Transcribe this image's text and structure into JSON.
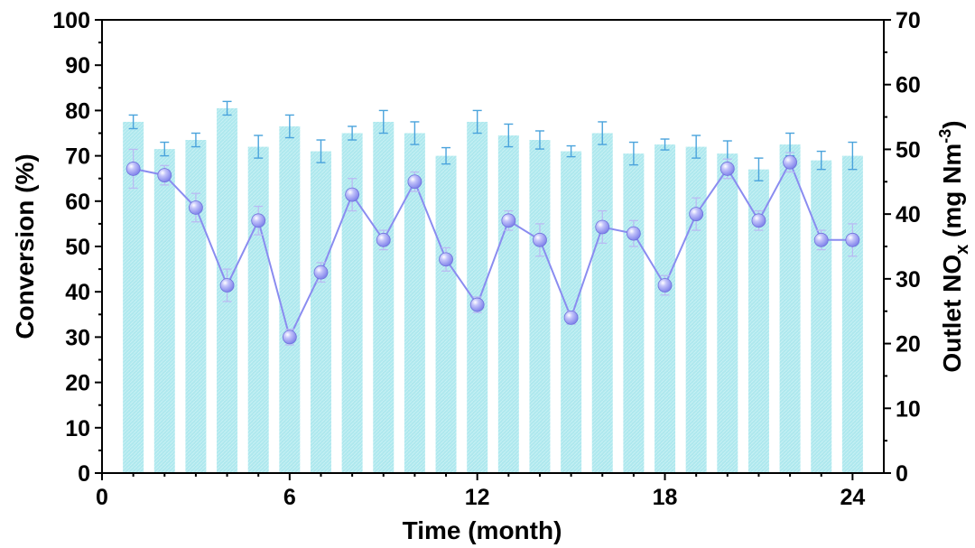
{
  "chart_data": {
    "type": "bar+line",
    "xlabel": "Time (month)",
    "xlim": [
      0,
      25
    ],
    "x_ticks": [
      0,
      6,
      12,
      18,
      24
    ],
    "x": [
      1,
      2,
      3,
      4,
      5,
      6,
      7,
      8,
      9,
      10,
      11,
      12,
      13,
      14,
      15,
      16,
      17,
      18,
      19,
      20,
      21,
      22,
      23,
      24
    ],
    "left_axis": {
      "label": "Conversion (%)",
      "ylim": [
        0,
        100
      ],
      "ticks": [
        0,
        10,
        20,
        30,
        40,
        50,
        60,
        70,
        80,
        90,
        100
      ]
    },
    "right_axis": {
      "label_main": "Outlet NO",
      "label_sub": "x",
      "label_unit": " (mg Nm",
      "label_sup": "-3",
      "label_close": ")",
      "ylim": [
        0,
        70
      ],
      "ticks": [
        0,
        10,
        20,
        30,
        40,
        50,
        60,
        70
      ]
    },
    "series": [
      {
        "name": "Conversion",
        "type": "bar",
        "axis": "left",
        "color": "#aee8ee",
        "error_color": "#4aa3dc",
        "values": [
          77.5,
          71.5,
          73.5,
          80.5,
          72.0,
          76.5,
          71.0,
          75.0,
          77.5,
          75.0,
          70.0,
          77.5,
          74.5,
          73.5,
          71.0,
          75.0,
          70.5,
          72.5,
          72.0,
          70.5,
          67.0,
          72.5,
          69.0,
          70.0
        ],
        "errors": [
          1.5,
          1.5,
          1.5,
          1.5,
          2.5,
          2.5,
          2.5,
          1.5,
          2.5,
          2.5,
          1.8,
          2.5,
          2.5,
          2.0,
          1.2,
          2.5,
          2.5,
          1.2,
          2.5,
          2.8,
          2.5,
          2.5,
          2.0,
          3.0
        ]
      },
      {
        "name": "Outlet NOx",
        "type": "line",
        "axis": "right",
        "color": "#8a8cf0",
        "marker_color": "#9a9cf5",
        "values": [
          47,
          46,
          41,
          29,
          39,
          21,
          31,
          43,
          36,
          45,
          33,
          26,
          39,
          36,
          24,
          38,
          37,
          29,
          40,
          47,
          39,
          48,
          36,
          36
        ],
        "errors": [
          3.0,
          1.5,
          2.2,
          2.5,
          2.2,
          1.2,
          1.5,
          2.5,
          1.5,
          1.5,
          1.8,
          1.2,
          1.5,
          2.5,
          1.0,
          2.5,
          2.0,
          1.5,
          2.5,
          1.5,
          1.5,
          1.5,
          1.5,
          2.5
        ]
      }
    ]
  }
}
